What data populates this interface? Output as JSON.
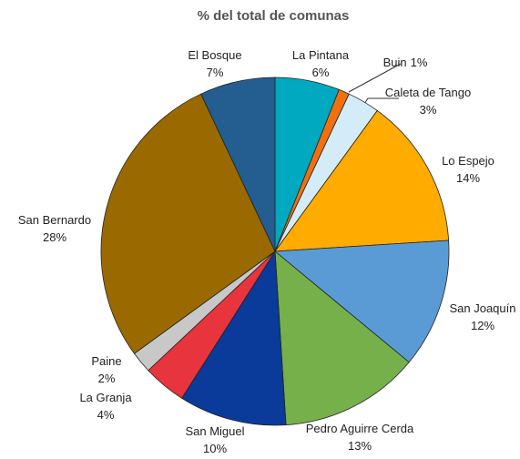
{
  "chart_data": {
    "type": "pie",
    "title": "% del total de comunas",
    "categories": [
      "La Pintana",
      "Buin",
      "Caleta de Tango",
      "Lo Espejo",
      "San Joaquín",
      "Pedro Aguirre Cerda",
      "San Miguel",
      "La Granja",
      "Paine",
      "San Bernardo",
      "El Bosque"
    ],
    "values": [
      6,
      1,
      3,
      14,
      12,
      13,
      10,
      4,
      2,
      28,
      7
    ],
    "value_labels": [
      "6%",
      "1%",
      "3%",
      "14%",
      "12%",
      "13%",
      "10%",
      "4%",
      "2%",
      "28%",
      "7%"
    ],
    "colors": [
      "#00a9c0",
      "#f07010",
      "#d4ecf8",
      "#ffab00",
      "#5b9bd5",
      "#76b04a",
      "#0a3a9a",
      "#e8343c",
      "#c8c8c8",
      "#9a6a00",
      "#245d8f"
    ]
  }
}
